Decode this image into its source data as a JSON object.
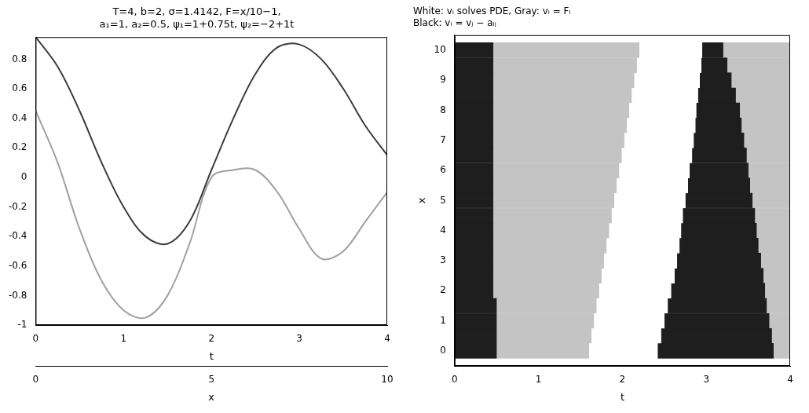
{
  "chart_data": [
    {
      "type": "line",
      "title": [
        "T=4, b=2, σ=1.4142, F=x/10−1,",
        "a₁=1, a₂=0.5, ψ₁=1+0.75t, ψ₂=−2+1t"
      ],
      "xlabel": "t",
      "x": [
        0,
        0.25,
        0.5,
        0.75,
        1,
        1.25,
        1.5,
        1.75,
        2,
        2.25,
        2.5,
        2.75,
        3,
        3.25,
        3.5,
        3.75,
        4
      ],
      "series": [
        {
          "color": "#3c3c3c",
          "values": [
            0.95,
            0.75,
            0.45,
            0.1,
            -0.2,
            -0.4,
            -0.45,
            -0.3,
            0.05,
            0.4,
            0.7,
            0.88,
            0.9,
            0.8,
            0.6,
            0.35,
            0.15
          ]
        },
        {
          "color": "#a0a0a0",
          "values": [
            0.45,
            0.1,
            -0.35,
            -0.7,
            -0.9,
            -0.95,
            -0.8,
            -0.45,
            0.0,
            0.05,
            0.05,
            -0.1,
            -0.35,
            -0.55,
            -0.5,
            -0.3,
            -0.1
          ]
        }
      ],
      "xlim": [
        0,
        4
      ],
      "xticks": [
        0,
        1,
        2,
        3,
        4
      ],
      "ylim": [
        -1,
        0.95
      ],
      "yticks": [
        -1,
        -0.8,
        -0.6,
        -0.4,
        -0.2,
        0,
        0.2,
        0.4,
        0.6,
        0.8
      ],
      "depth_label": "x",
      "depth_lim": [
        0,
        10
      ],
      "depth_ticks": [
        0,
        5,
        10
      ],
      "grid": false
    },
    {
      "type": "bar",
      "orientation": "horizontal",
      "title": [
        "White: vᵢ solves PDE, Gray: vᵢ = Fᵢ",
        "Black: vᵢ = vⱼ − aᵢⱼ"
      ],
      "xlabel": "t",
      "ylabel": "x",
      "rows": [
        0,
        0.5,
        1,
        1.5,
        2,
        2.5,
        3,
        3.5,
        4,
        4.5,
        5,
        5.5,
        6,
        6.5,
        7,
        7.5,
        8,
        8.5,
        9,
        9.5,
        10
      ],
      "boundaries": [
        [
          0.5,
          0.5,
          0.5,
          0.5,
          0.46,
          0.46,
          0.46,
          0.46,
          0.46,
          0.46,
          0.46,
          0.46,
          0.46,
          0.46,
          0.46,
          0.46,
          0.46,
          0.46,
          0.46,
          0.46,
          0.46
        ],
        [
          1.6,
          1.63,
          1.66,
          1.69,
          1.72,
          1.75,
          1.78,
          1.81,
          1.84,
          1.87,
          1.9,
          1.93,
          1.96,
          1.99,
          2.02,
          2.05,
          2.08,
          2.11,
          2.14,
          2.17,
          2.2
        ],
        [
          2.42,
          2.46,
          2.5,
          2.54,
          2.58,
          2.62,
          2.65,
          2.68,
          2.7,
          2.72,
          2.75,
          2.78,
          2.8,
          2.83,
          2.85,
          2.87,
          2.88,
          2.9,
          2.92,
          2.94,
          2.95
        ],
        [
          3.8,
          3.78,
          3.75,
          3.72,
          3.7,
          3.68,
          3.65,
          3.62,
          3.6,
          3.58,
          3.55,
          3.52,
          3.5,
          3.48,
          3.45,
          3.42,
          3.4,
          3.35,
          3.3,
          3.25,
          3.2
        ]
      ],
      "colors": [
        "#1e1e1e",
        "#c4c4c4",
        "#ffffff",
        "#1e1e1e",
        "#c4c4c4"
      ],
      "xlim": [
        0,
        4
      ],
      "xticks": [
        0,
        1,
        2,
        3,
        4
      ],
      "ylim": [
        0,
        10
      ],
      "yticks": [
        0,
        1,
        2,
        3,
        4,
        5,
        6,
        7,
        8,
        9,
        10
      ],
      "grid": false
    }
  ]
}
